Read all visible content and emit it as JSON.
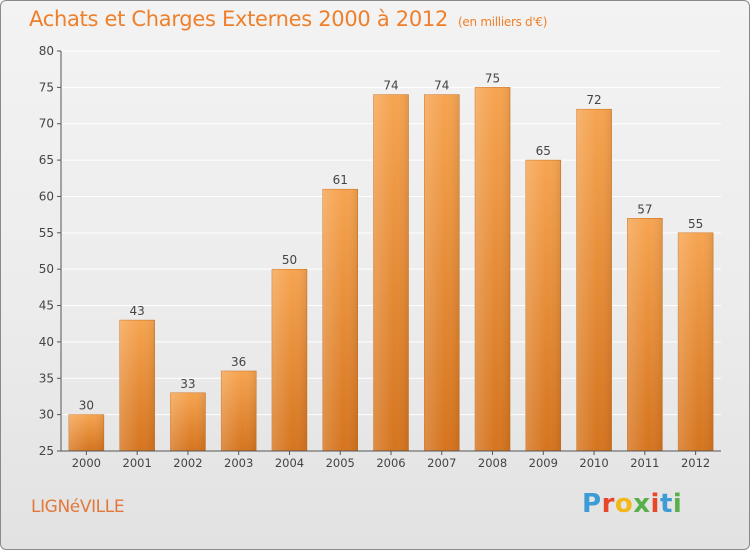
{
  "header": {
    "title": "Achats et Charges Externes 2000 à 2012",
    "unit": "(en milliers d'€)"
  },
  "footer": {
    "commune": "LIGNéVILLE",
    "logo_text": "Proxiti",
    "logo_colors": [
      "#3d9bd6",
      "#e8462a",
      "#f2b818",
      "#58b04a",
      "#e8462a",
      "#3d9bd6",
      "#58b04a"
    ]
  },
  "colors": {
    "bar_light": "#f6a450",
    "bar_dark": "#d5741e",
    "axis": "#555555",
    "grid": "#ffffff",
    "text": "#444444"
  },
  "chart_data": {
    "type": "bar",
    "title": "Achats et Charges Externes 2000 à 2012",
    "subtitle": "(en milliers d'€)",
    "categories": [
      "2000",
      "2001",
      "2002",
      "2003",
      "2004",
      "2005",
      "2006",
      "2007",
      "2008",
      "2009",
      "2010",
      "2011",
      "2012"
    ],
    "values": [
      30,
      43,
      33,
      36,
      50,
      61,
      74,
      74,
      75,
      65,
      72,
      57,
      55
    ],
    "ylim": [
      25,
      80
    ],
    "yticks": [
      25,
      30,
      35,
      40,
      45,
      50,
      55,
      60,
      65,
      70,
      75,
      80
    ],
    "grid": true,
    "data_labels": true
  }
}
